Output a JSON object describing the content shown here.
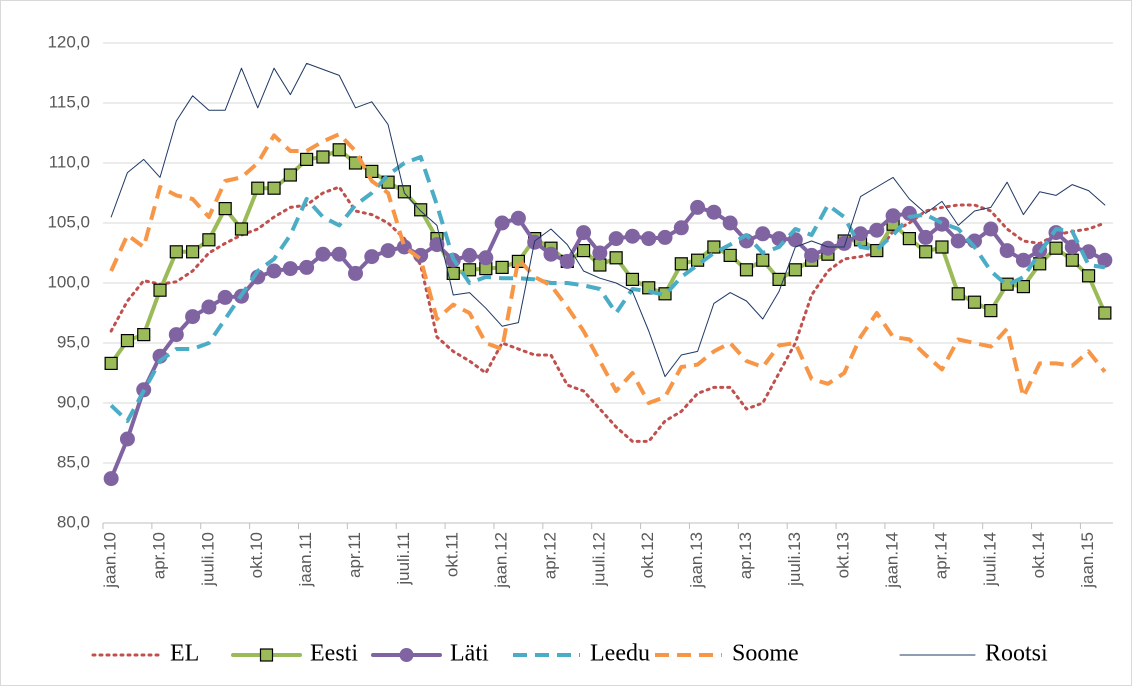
{
  "chart_data": {
    "type": "line",
    "categories": [
      "jaan.10",
      null,
      null,
      "apr.10",
      null,
      null,
      "juuli.10",
      null,
      null,
      "okt.10",
      null,
      null,
      "jaan.11",
      null,
      null,
      "apr.11",
      null,
      null,
      "juuli.11",
      null,
      null,
      "okt.11",
      null,
      null,
      "jaan.12",
      null,
      null,
      "apr.12",
      null,
      null,
      "juuli.12",
      null,
      null,
      "okt.12",
      null,
      null,
      "jaan.13",
      null,
      null,
      "apr.13",
      null,
      null,
      "juuli.13",
      null,
      null,
      "okt.13",
      null,
      null,
      "jaan.14",
      null,
      null,
      "apr.14",
      null,
      null,
      "juuli.14",
      null,
      null,
      "okt.14",
      null,
      null,
      "jaan.15",
      null
    ],
    "ylim": [
      80,
      120
    ],
    "yticks": [
      {
        "value": 80,
        "label": "80,0"
      },
      {
        "value": 85,
        "label": "85,0"
      },
      {
        "value": 90,
        "label": "90,0"
      },
      {
        "value": 95,
        "label": "95,0"
      },
      {
        "value": 100,
        "label": "100,0"
      },
      {
        "value": 105,
        "label": "105,0"
      },
      {
        "value": 110,
        "label": "110,0"
      },
      {
        "value": 115,
        "label": "115,0"
      },
      {
        "value": 120,
        "label": "120,0"
      }
    ],
    "grid": true,
    "legend": "bottom",
    "series": [
      {
        "name": "EL",
        "color": "#c0504d",
        "line_style": "dotted",
        "marker": "none",
        "values": [
          96.0,
          98.5,
          100.2,
          99.9,
          100.1,
          101.0,
          102.5,
          103.3,
          104.0,
          104.5,
          105.5,
          106.3,
          106.5,
          107.5,
          108.0,
          106.0,
          105.7,
          105.0,
          103.7,
          101.5,
          95.5,
          94.3,
          93.5,
          92.5,
          95.0,
          94.5,
          94.0,
          94.0,
          91.5,
          91.0,
          89.5,
          88.0,
          86.8,
          86.8,
          88.5,
          89.3,
          90.8,
          91.3,
          91.3,
          89.5,
          90.0,
          92.5,
          95.0,
          99.0,
          101.0,
          102.0,
          102.2,
          102.5,
          104.3,
          105.0,
          106.0,
          106.3,
          106.5,
          106.5,
          106.0,
          104.5,
          103.5,
          103.3,
          104.0,
          104.3,
          104.5,
          105.0
        ]
      },
      {
        "name": "Eesti",
        "color": "#9bbb59",
        "line_style": "solid",
        "marker": "square",
        "values": [
          93.3,
          95.2,
          95.7,
          99.4,
          102.6,
          102.6,
          103.6,
          106.2,
          104.5,
          107.9,
          107.9,
          109.0,
          110.3,
          110.5,
          111.1,
          110.0,
          109.3,
          108.4,
          107.6,
          106.1,
          103.7,
          100.8,
          101.1,
          101.2,
          101.3,
          101.8,
          103.7,
          102.9,
          101.8,
          102.7,
          101.5,
          102.1,
          100.3,
          99.6,
          99.1,
          101.6,
          101.9,
          103.0,
          102.3,
          101.1,
          101.9,
          100.3,
          101.1,
          101.9,
          102.4,
          103.5,
          103.6,
          102.7,
          104.9,
          103.7,
          102.6,
          103.0,
          99.1,
          98.4,
          97.7,
          99.9,
          99.7,
          101.6,
          102.9,
          101.9,
          100.6,
          97.5
        ]
      },
      {
        "name": "Läti",
        "color": "#8064a2",
        "line_style": "solid",
        "marker": "circle",
        "values": [
          83.7,
          87.0,
          91.1,
          93.9,
          95.7,
          97.2,
          98.0,
          98.8,
          98.9,
          100.5,
          101.0,
          101.2,
          101.3,
          102.4,
          102.4,
          100.8,
          102.2,
          102.7,
          103.0,
          102.3,
          103.2,
          101.9,
          102.3,
          102.1,
          105.0,
          105.4,
          103.4,
          102.4,
          101.8,
          104.2,
          102.5,
          103.7,
          103.9,
          103.7,
          103.8,
          104.6,
          106.3,
          105.9,
          105.0,
          103.5,
          104.1,
          103.7,
          103.6,
          102.3,
          102.9,
          103.3,
          104.1,
          104.4,
          105.6,
          105.8,
          103.8,
          104.9,
          103.5,
          103.5,
          104.5,
          102.7,
          101.9,
          102.7,
          104.2,
          103.0,
          102.6,
          101.9
        ]
      },
      {
        "name": "Leedu",
        "color": "#4bacc6",
        "line_style": "dashed",
        "marker": "none",
        "values": [
          89.8,
          88.5,
          91.0,
          93.5,
          94.5,
          94.5,
          95.0,
          97.0,
          99.0,
          101.0,
          102.0,
          104.0,
          107.0,
          105.5,
          104.8,
          106.5,
          107.5,
          109.0,
          110.0,
          110.5,
          106.5,
          102.0,
          100.0,
          100.5,
          100.4,
          100.4,
          100.3,
          100.0,
          100.0,
          99.8,
          99.5,
          97.5,
          99.5,
          99.3,
          99.0,
          100.5,
          101.5,
          102.5,
          103.2,
          104.0,
          102.5,
          103.0,
          104.5,
          104.0,
          106.5,
          105.5,
          103.0,
          102.8,
          104.0,
          105.5,
          105.7,
          105.0,
          104.5,
          103.0,
          101.0,
          99.8,
          100.5,
          102.5,
          104.5,
          104.3,
          101.5,
          101.3
        ]
      },
      {
        "name": "Soome",
        "color": "#f79646",
        "line_style": "dashed",
        "marker": "none",
        "values": [
          101.0,
          104.0,
          103.0,
          108.0,
          107.3,
          107.0,
          105.5,
          108.5,
          108.8,
          110.0,
          112.3,
          111.0,
          111.0,
          111.8,
          112.4,
          111.0,
          108.5,
          107.5,
          103.0,
          102.0,
          97.0,
          98.2,
          97.5,
          95.0,
          94.5,
          102.0,
          100.5,
          99.8,
          98.0,
          96.0,
          93.5,
          91.0,
          92.5,
          90.0,
          90.5,
          93.0,
          93.2,
          94.3,
          95.0,
          93.5,
          93.0,
          94.8,
          95.0,
          92.0,
          91.6,
          92.5,
          95.5,
          97.5,
          95.5,
          95.3,
          94.0,
          92.8,
          95.3,
          95.0,
          94.7,
          96.2,
          90.5,
          93.3,
          93.3,
          93.1,
          94.3,
          92.6
        ]
      },
      {
        "name": "Rootsi",
        "color": "#1f3864",
        "line_style": "thin",
        "marker": "none",
        "values": [
          105.5,
          109.2,
          110.3,
          108.8,
          113.5,
          115.6,
          114.4,
          114.4,
          117.9,
          114.6,
          117.9,
          115.7,
          118.3,
          117.8,
          117.3,
          114.6,
          115.1,
          113.2,
          107.5,
          106.0,
          104.8,
          99.0,
          99.2,
          97.9,
          96.4,
          96.7,
          103.5,
          104.5,
          103.2,
          101.0,
          100.4,
          100.0,
          99.3,
          96.0,
          92.2,
          94.0,
          94.3,
          98.3,
          99.2,
          98.5,
          97.0,
          99.3,
          103.0,
          103.5,
          103.0,
          103.0,
          107.2,
          108.0,
          108.8,
          107.0,
          105.8,
          106.8,
          104.8,
          106.0,
          106.3,
          108.4,
          105.7,
          107.6,
          107.3,
          108.2,
          107.7,
          106.5
        ]
      }
    ]
  }
}
